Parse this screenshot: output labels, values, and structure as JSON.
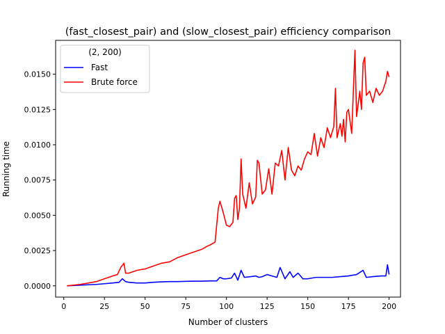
{
  "chart_data": {
    "type": "line",
    "title": "(fast_closest_pair) and (slow_closest_pair) efficiency comparison",
    "xlabel": "Number of clusters",
    "ylabel": "Running time",
    "xlim": [
      -5,
      207
    ],
    "ylim": [
      -0.0008,
      0.0174
    ],
    "xticks": [
      0,
      25,
      50,
      75,
      100,
      125,
      150,
      175,
      200
    ],
    "yticks": [
      0.0,
      0.0025,
      0.005,
      0.0075,
      0.01,
      0.0125,
      0.015
    ],
    "ytick_labels": [
      "0.0000",
      "0.0025",
      "0.0050",
      "0.0075",
      "0.0100",
      "0.0125",
      "0.0150"
    ],
    "grid": false,
    "legend": {
      "title": "(2, 200)",
      "placement": "top-left"
    },
    "series": [
      {
        "name": "Fast",
        "color": "#0000ff",
        "x": [
          2,
          10,
          20,
          25,
          30,
          34,
          36,
          38,
          40,
          45,
          50,
          55,
          60,
          65,
          70,
          75,
          80,
          85,
          90,
          94,
          96,
          98,
          100,
          103,
          105,
          107,
          109,
          111,
          115,
          118,
          120,
          122,
          125,
          128,
          131,
          133,
          136,
          139,
          141,
          144,
          147,
          150,
          155,
          160,
          165,
          170,
          175,
          180,
          184,
          186,
          190,
          195,
          198,
          199,
          200
        ],
        "y": [
          0.0,
          5e-05,
          0.0001,
          0.00015,
          0.0002,
          0.00025,
          0.0005,
          0.0003,
          0.00025,
          0.0002,
          0.0002,
          0.00025,
          0.00028,
          0.0003,
          0.0003,
          0.00032,
          0.00033,
          0.00033,
          0.00035,
          0.00035,
          0.0006,
          0.0005,
          0.0005,
          0.00055,
          0.0009,
          0.0004,
          0.0011,
          0.0006,
          0.00065,
          0.0007,
          0.0006,
          0.00065,
          0.0008,
          0.0007,
          0.0006,
          0.0013,
          0.0005,
          0.001,
          0.0006,
          0.0009,
          0.0005,
          0.0005,
          0.0006,
          0.0006,
          0.0006,
          0.00065,
          0.0007,
          0.0008,
          0.0011,
          0.0006,
          0.00065,
          0.0007,
          0.0007,
          0.0015,
          0.0008
        ]
      },
      {
        "name": "Brute force",
        "color": "#ff0000",
        "x": [
          2,
          10,
          15,
          20,
          25,
          30,
          33,
          35,
          37,
          38,
          40,
          45,
          50,
          55,
          60,
          65,
          70,
          75,
          80,
          85,
          88,
          90,
          93,
          95,
          96,
          98,
          100,
          102,
          104,
          105,
          106,
          107,
          108,
          109,
          110,
          112,
          114,
          116,
          118,
          119,
          120,
          122,
          124,
          126,
          128,
          130,
          132,
          134,
          136,
          138,
          140,
          142,
          144,
          146,
          148,
          150,
          152,
          154,
          156,
          158,
          160,
          162,
          164,
          166,
          167,
          168,
          170,
          171,
          172,
          173,
          174,
          175,
          177,
          179,
          180,
          182,
          183,
          184,
          185,
          186,
          188,
          190,
          192,
          194,
          196,
          198,
          199,
          200
        ],
        "y": [
          0.0,
          0.0001,
          0.0002,
          0.0003,
          0.0005,
          0.0007,
          0.0008,
          0.0013,
          0.0016,
          0.0009,
          0.0009,
          0.0011,
          0.0012,
          0.0014,
          0.0016,
          0.0017,
          0.002,
          0.0022,
          0.0024,
          0.0026,
          0.0028,
          0.0029,
          0.0031,
          0.0055,
          0.006,
          0.0052,
          0.0043,
          0.0042,
          0.0045,
          0.0062,
          0.0064,
          0.0047,
          0.0055,
          0.009,
          0.0065,
          0.0055,
          0.0073,
          0.0058,
          0.0063,
          0.0089,
          0.0087,
          0.0065,
          0.0068,
          0.0083,
          0.0065,
          0.0087,
          0.0085,
          0.0096,
          0.0075,
          0.0098,
          0.0082,
          0.0078,
          0.0085,
          0.0082,
          0.009,
          0.0095,
          0.0093,
          0.0108,
          0.0092,
          0.0105,
          0.0098,
          0.0112,
          0.0105,
          0.0113,
          0.014,
          0.0105,
          0.0115,
          0.0106,
          0.0118,
          0.0102,
          0.0123,
          0.0125,
          0.0108,
          0.0167,
          0.012,
          0.0138,
          0.0125,
          0.0158,
          0.0162,
          0.0135,
          0.0138,
          0.013,
          0.014,
          0.0135,
          0.0138,
          0.0145,
          0.0152,
          0.0148
        ]
      }
    ]
  }
}
